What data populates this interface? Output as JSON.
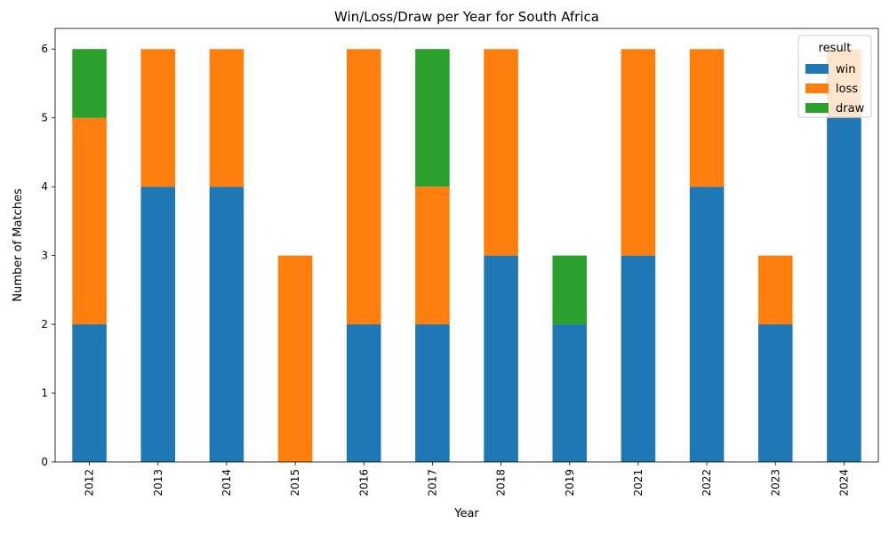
{
  "chart_data": {
    "type": "bar",
    "stacked": true,
    "title": "Win/Loss/Draw per Year for South Africa",
    "xlabel": "Year",
    "ylabel": "Number of Matches",
    "categories": [
      "2012",
      "2013",
      "2014",
      "2015",
      "2016",
      "2017",
      "2018",
      "2019",
      "2021",
      "2022",
      "2023",
      "2024"
    ],
    "series": [
      {
        "name": "win",
        "color": "#1f77b4",
        "values": [
          2,
          4,
          4,
          0,
          2,
          2,
          3,
          2,
          3,
          4,
          2,
          5
        ]
      },
      {
        "name": "loss",
        "color": "#ff7f0e",
        "values": [
          3,
          2,
          2,
          3,
          4,
          2,
          3,
          0,
          3,
          2,
          1,
          1
        ]
      },
      {
        "name": "draw",
        "color": "#2ca02c",
        "values": [
          1,
          0,
          0,
          0,
          0,
          2,
          0,
          1,
          0,
          0,
          0,
          0
        ]
      }
    ],
    "ylim": [
      0,
      6.3
    ],
    "yticks": [
      0,
      1,
      2,
      3,
      4,
      5,
      6
    ],
    "grid": false,
    "legend": {
      "title": "result",
      "placement": "top-right"
    }
  }
}
